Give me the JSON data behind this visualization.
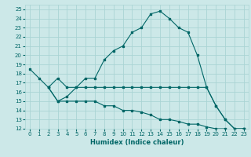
{
  "xlabel": "Humidex (Indice chaleur)",
  "bg_color": "#cce8e8",
  "grid_color": "#aad4d4",
  "line_color": "#006666",
  "xlim": [
    -0.5,
    23.5
  ],
  "ylim": [
    12,
    25.5
  ],
  "yticks": [
    12,
    13,
    14,
    15,
    16,
    17,
    18,
    19,
    20,
    21,
    22,
    23,
    24,
    25
  ],
  "xticks": [
    0,
    1,
    2,
    3,
    4,
    5,
    6,
    7,
    8,
    9,
    10,
    11,
    12,
    13,
    14,
    15,
    16,
    17,
    18,
    19,
    20,
    21,
    22,
    23
  ],
  "line1_x": [
    0,
    1,
    2,
    3,
    4,
    5,
    6,
    7,
    8,
    9,
    10,
    11,
    12,
    13,
    14,
    15,
    16,
    17,
    18,
    19,
    20,
    21,
    22,
    23
  ],
  "line1_y": [
    18.5,
    17.5,
    16.5,
    17.5,
    16.5,
    16.5,
    17.5,
    17.5,
    19.5,
    20.5,
    21.0,
    22.5,
    23.0,
    24.5,
    24.8,
    24.0,
    23.0,
    22.5,
    20.0,
    16.5,
    14.5,
    13.0,
    12.0,
    12.0
  ],
  "line2_x": [
    2,
    3,
    4,
    5,
    6,
    7,
    8,
    9,
    10,
    11,
    12,
    13,
    14,
    15,
    16,
    17,
    18,
    19,
    20,
    21,
    22,
    23
  ],
  "line2_y": [
    16.5,
    15.0,
    15.5,
    16.5,
    16.5,
    16.5,
    16.5,
    16.5,
    16.5,
    16.5,
    16.5,
    16.5,
    16.5,
    16.5,
    16.5,
    16.5,
    16.5,
    16.5,
    14.5,
    13.0,
    12.0,
    12.0
  ],
  "line3_x": [
    2,
    3,
    4,
    5,
    6,
    7,
    8,
    9,
    10,
    11,
    12,
    13,
    14,
    15,
    16,
    17,
    18,
    19,
    20,
    21,
    22,
    23
  ],
  "line3_y": [
    16.5,
    15.0,
    15.0,
    15.0,
    15.0,
    15.0,
    14.5,
    14.5,
    14.0,
    14.0,
    13.8,
    13.5,
    13.0,
    13.0,
    12.8,
    12.5,
    12.5,
    12.2,
    12.0,
    12.0,
    11.8,
    12.0
  ],
  "tick_fontsize": 5.0,
  "xlabel_fontsize": 6.0
}
